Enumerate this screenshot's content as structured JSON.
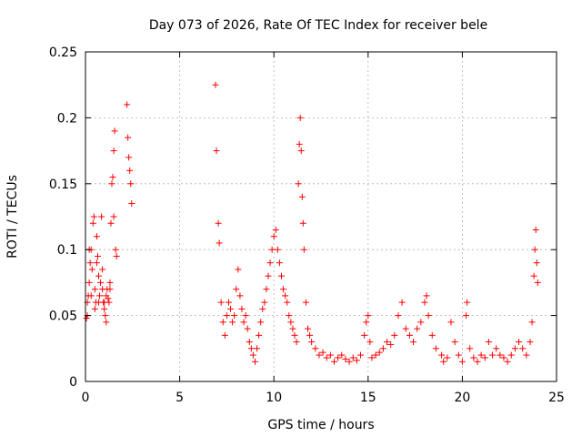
{
  "chart_data": {
    "type": "scatter",
    "title": "Day 073 of 2026, Rate Of TEC Index for receiver bele",
    "xlabel": "GPS time / hours",
    "ylabel": "ROTI / TECUs",
    "xlim": [
      0,
      25
    ],
    "ylim": [
      0,
      0.25
    ],
    "x_ticks": [
      0,
      5,
      10,
      15,
      20,
      25
    ],
    "y_ticks": [
      0,
      0.05,
      0.1,
      0.15,
      0.2,
      0.25
    ],
    "grid": true,
    "marker": "plus",
    "marker_color": "#ff0000",
    "series": [
      {
        "values": [
          [
            0.05,
            0.048
          ],
          [
            0.1,
            0.06
          ],
          [
            0.15,
            0.065
          ],
          [
            0.2,
            0.075
          ],
          [
            0.25,
            0.09
          ],
          [
            0.3,
            0.1
          ],
          [
            0.35,
            0.085
          ],
          [
            0.4,
            0.12
          ],
          [
            0.45,
            0.125
          ],
          [
            0.5,
            0.07
          ],
          [
            0.55,
            0.06
          ],
          [
            0.6,
            0.09
          ],
          [
            0.65,
            0.095
          ],
          [
            0.7,
            0.08
          ],
          [
            0.75,
            0.065
          ],
          [
            0.8,
            0.075
          ],
          [
            0.85,
            0.125
          ],
          [
            0.9,
            0.085
          ],
          [
            0.95,
            0.06
          ],
          [
            1.0,
            0.055
          ],
          [
            1.05,
            0.05
          ],
          [
            1.1,
            0.065
          ],
          [
            1.15,
            0.07
          ],
          [
            1.2,
            0.063
          ],
          [
            1.25,
            0.06
          ],
          [
            1.3,
            0.07
          ],
          [
            1.35,
            0.12
          ],
          [
            1.4,
            0.15
          ],
          [
            1.45,
            0.155
          ],
          [
            1.5,
            0.175
          ],
          [
            1.55,
            0.19
          ],
          [
            1.6,
            0.1
          ],
          [
            1.65,
            0.095
          ],
          [
            0.1,
            0.05
          ],
          [
            0.3,
            0.065
          ],
          [
            0.5,
            0.055
          ],
          [
            0.7,
            0.06
          ],
          [
            0.9,
            0.07
          ],
          [
            1.1,
            0.045
          ],
          [
            1.3,
            0.075
          ],
          [
            1.5,
            0.125
          ],
          [
            0.2,
            0.1
          ],
          [
            0.6,
            0.11
          ],
          [
            1.0,
            0.06
          ],
          [
            2.2,
            0.21
          ],
          [
            2.25,
            0.185
          ],
          [
            2.3,
            0.17
          ],
          [
            2.35,
            0.16
          ],
          [
            2.4,
            0.15
          ],
          [
            2.45,
            0.135
          ],
          [
            6.9,
            0.225
          ],
          [
            6.95,
            0.175
          ],
          [
            7.05,
            0.12
          ],
          [
            7.1,
            0.105
          ],
          [
            7.2,
            0.06
          ],
          [
            7.3,
            0.045
          ],
          [
            7.4,
            0.035
          ],
          [
            7.5,
            0.05
          ],
          [
            7.6,
            0.06
          ],
          [
            7.7,
            0.055
          ],
          [
            7.8,
            0.045
          ],
          [
            7.9,
            0.05
          ],
          [
            8.0,
            0.07
          ],
          [
            8.1,
            0.085
          ],
          [
            8.2,
            0.065
          ],
          [
            8.3,
            0.055
          ],
          [
            8.4,
            0.045
          ],
          [
            8.5,
            0.05
          ],
          [
            8.6,
            0.04
          ],
          [
            8.7,
            0.03
          ],
          [
            8.8,
            0.025
          ],
          [
            8.9,
            0.02
          ],
          [
            9.0,
            0.015
          ],
          [
            9.1,
            0.025
          ],
          [
            9.2,
            0.035
          ],
          [
            9.3,
            0.045
          ],
          [
            9.4,
            0.055
          ],
          [
            9.5,
            0.06
          ],
          [
            9.6,
            0.07
          ],
          [
            9.7,
            0.08
          ],
          [
            9.8,
            0.09
          ],
          [
            9.9,
            0.1
          ],
          [
            10.0,
            0.11
          ],
          [
            10.1,
            0.115
          ],
          [
            10.2,
            0.1
          ],
          [
            10.3,
            0.09
          ],
          [
            10.4,
            0.08
          ],
          [
            10.5,
            0.07
          ],
          [
            10.6,
            0.065
          ],
          [
            10.7,
            0.06
          ],
          [
            10.8,
            0.05
          ],
          [
            10.9,
            0.045
          ],
          [
            11.0,
            0.04
          ],
          [
            11.1,
            0.035
          ],
          [
            11.2,
            0.03
          ],
          [
            11.3,
            0.15
          ],
          [
            11.35,
            0.18
          ],
          [
            11.4,
            0.2
          ],
          [
            11.45,
            0.175
          ],
          [
            11.5,
            0.14
          ],
          [
            11.55,
            0.12
          ],
          [
            11.6,
            0.1
          ],
          [
            11.7,
            0.06
          ],
          [
            11.8,
            0.04
          ],
          [
            11.9,
            0.035
          ],
          [
            12.0,
            0.03
          ],
          [
            12.2,
            0.025
          ],
          [
            12.4,
            0.02
          ],
          [
            12.6,
            0.022
          ],
          [
            12.8,
            0.018
          ],
          [
            13.0,
            0.02
          ],
          [
            13.2,
            0.015
          ],
          [
            13.4,
            0.018
          ],
          [
            13.6,
            0.02
          ],
          [
            13.8,
            0.017
          ],
          [
            14.0,
            0.015
          ],
          [
            14.2,
            0.018
          ],
          [
            14.4,
            0.016
          ],
          [
            14.6,
            0.02
          ],
          [
            14.8,
            0.035
          ],
          [
            14.9,
            0.045
          ],
          [
            15.0,
            0.05
          ],
          [
            15.1,
            0.03
          ],
          [
            15.2,
            0.018
          ],
          [
            15.4,
            0.02
          ],
          [
            15.6,
            0.022
          ],
          [
            15.8,
            0.025
          ],
          [
            16.0,
            0.03
          ],
          [
            16.2,
            0.028
          ],
          [
            16.4,
            0.035
          ],
          [
            16.6,
            0.05
          ],
          [
            16.8,
            0.06
          ],
          [
            17.0,
            0.04
          ],
          [
            17.2,
            0.035
          ],
          [
            17.4,
            0.03
          ],
          [
            17.6,
            0.04
          ],
          [
            17.8,
            0.045
          ],
          [
            18.0,
            0.06
          ],
          [
            18.1,
            0.065
          ],
          [
            18.2,
            0.05
          ],
          [
            18.4,
            0.035
          ],
          [
            18.6,
            0.025
          ],
          [
            18.9,
            0.02
          ],
          [
            19.0,
            0.015
          ],
          [
            19.2,
            0.018
          ],
          [
            19.4,
            0.045
          ],
          [
            19.6,
            0.03
          ],
          [
            19.8,
            0.02
          ],
          [
            20.0,
            0.015
          ],
          [
            20.2,
            0.05
          ],
          [
            20.25,
            0.06
          ],
          [
            20.4,
            0.025
          ],
          [
            20.6,
            0.018
          ],
          [
            20.8,
            0.015
          ],
          [
            21.0,
            0.02
          ],
          [
            21.2,
            0.018
          ],
          [
            21.4,
            0.03
          ],
          [
            21.6,
            0.02
          ],
          [
            21.8,
            0.025
          ],
          [
            22.0,
            0.02
          ],
          [
            22.2,
            0.018
          ],
          [
            22.4,
            0.015
          ],
          [
            22.6,
            0.02
          ],
          [
            22.8,
            0.025
          ],
          [
            23.0,
            0.03
          ],
          [
            23.2,
            0.025
          ],
          [
            23.4,
            0.02
          ],
          [
            23.6,
            0.03
          ],
          [
            23.7,
            0.045
          ],
          [
            23.8,
            0.08
          ],
          [
            23.85,
            0.1
          ],
          [
            23.9,
            0.115
          ],
          [
            23.95,
            0.09
          ],
          [
            24.0,
            0.075
          ]
        ]
      }
    ]
  }
}
